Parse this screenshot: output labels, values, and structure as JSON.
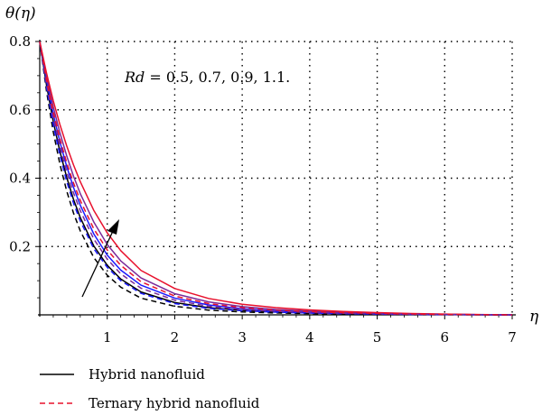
{
  "chart_data": {
    "type": "line",
    "title": "",
    "xlabel": "η",
    "ylabel": "θ(η)",
    "xlim": [
      0,
      7
    ],
    "ylim": [
      0,
      0.8
    ],
    "x_ticks": [
      "1",
      "2",
      "3",
      "4",
      "5",
      "6",
      "7"
    ],
    "y_ticks": [
      "0.2",
      "0.4",
      "0.6",
      "0.8"
    ],
    "grid": true,
    "annotation": {
      "param": "Rd",
      "text": " = 0.5, 0.7, 0.9, 1.1."
    },
    "legend": [
      {
        "label": "Hybrid nanofluid",
        "style": "solid"
      },
      {
        "label": "Ternary hybrid nanofluid",
        "style": "dashed"
      }
    ],
    "colors": [
      "#000000",
      "#1a1aff",
      "#7a2a9a",
      "#e8102c"
    ],
    "x": [
      0,
      0.1,
      0.2,
      0.3,
      0.4,
      0.5,
      0.6,
      0.8,
      1.0,
      1.2,
      1.5,
      2.0,
      2.5,
      3.0,
      3.5,
      4.0,
      4.5,
      5.0,
      5.5,
      6.0,
      6.5,
      7.0
    ],
    "series": [
      {
        "style": "solid",
        "color": "#000000",
        "values": [
          0.8,
          0.673,
          0.566,
          0.477,
          0.402,
          0.338,
          0.285,
          0.202,
          0.145,
          0.105,
          0.067,
          0.036,
          0.021,
          0.013,
          0.0085,
          0.0057,
          0.0038,
          0.0025,
          0.0015,
          0.0008,
          0.0003,
          0
        ]
      },
      {
        "style": "solid",
        "color": "#1a1aff",
        "values": [
          0.8,
          0.686,
          0.588,
          0.505,
          0.434,
          0.373,
          0.321,
          0.237,
          0.175,
          0.131,
          0.087,
          0.049,
          0.029,
          0.018,
          0.012,
          0.008,
          0.0054,
          0.0036,
          0.0022,
          0.0012,
          0.0005,
          0
        ]
      },
      {
        "style": "solid",
        "color": "#7a2a9a",
        "values": [
          0.8,
          0.697,
          0.609,
          0.532,
          0.465,
          0.406,
          0.355,
          0.272,
          0.206,
          0.158,
          0.108,
          0.062,
          0.038,
          0.024,
          0.016,
          0.011,
          0.0075,
          0.005,
          0.0031,
          0.0017,
          0.0007,
          0
        ]
      },
      {
        "style": "solid",
        "color": "#e8102c",
        "values": [
          0.8,
          0.708,
          0.627,
          0.556,
          0.494,
          0.439,
          0.39,
          0.306,
          0.24,
          0.188,
          0.13,
          0.077,
          0.048,
          0.031,
          0.021,
          0.0145,
          0.01,
          0.0066,
          0.0041,
          0.0023,
          0.001,
          0
        ]
      },
      {
        "style": "dashed",
        "color": "#000000",
        "values": [
          0.8,
          0.655,
          0.536,
          0.44,
          0.362,
          0.298,
          0.246,
          0.168,
          0.116,
          0.081,
          0.049,
          0.025,
          0.014,
          0.0085,
          0.0055,
          0.0036,
          0.0024,
          0.0016,
          0.001,
          0.0005,
          0.0002,
          0
        ]
      },
      {
        "style": "dashed",
        "color": "#1a1aff",
        "values": [
          0.8,
          0.667,
          0.557,
          0.466,
          0.39,
          0.327,
          0.275,
          0.194,
          0.139,
          0.1,
          0.063,
          0.033,
          0.019,
          0.012,
          0.0078,
          0.0052,
          0.0035,
          0.0023,
          0.0014,
          0.0007,
          0.0003,
          0
        ]
      },
      {
        "style": "dashed",
        "color": "#7a2a9a",
        "values": [
          0.8,
          0.678,
          0.577,
          0.491,
          0.418,
          0.357,
          0.305,
          0.222,
          0.163,
          0.12,
          0.078,
          0.043,
          0.025,
          0.016,
          0.0105,
          0.007,
          0.0047,
          0.0031,
          0.0019,
          0.001,
          0.0004,
          0
        ]
      },
      {
        "style": "dashed",
        "color": "#e8102c",
        "values": [
          0.8,
          0.689,
          0.595,
          0.514,
          0.445,
          0.386,
          0.335,
          0.252,
          0.19,
          0.145,
          0.097,
          0.055,
          0.033,
          0.021,
          0.014,
          0.0094,
          0.0063,
          0.0042,
          0.0026,
          0.0014,
          0.0006,
          0
        ]
      }
    ]
  }
}
